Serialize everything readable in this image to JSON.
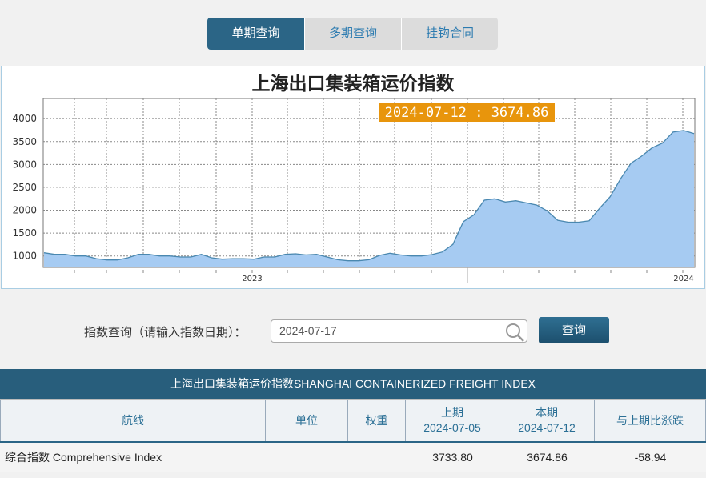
{
  "tabs": [
    {
      "label": "单期查询",
      "active": true
    },
    {
      "label": "多期查询",
      "active": false
    },
    {
      "label": "挂钩合同",
      "active": false
    }
  ],
  "chart_data": {
    "type": "area",
    "title": "上海出口集装箱运价指数",
    "tooltip": "2024-07-12 : 3674.86",
    "yticks": [
      1000,
      1500,
      2000,
      2500,
      3000,
      3500,
      4000
    ],
    "ylim": [
      750,
      4440
    ],
    "xtick_labels": [
      "2023",
      "2024"
    ],
    "grid": true,
    "fill_color": "#a6cbf2",
    "line_color": "#4a88b0",
    "values": [
      1070,
      1035,
      1035,
      1000,
      1000,
      940,
      912,
      912,
      960,
      1035,
      1035,
      1000,
      1000,
      977,
      977,
      1035,
      960,
      930,
      940,
      940,
      930,
      977,
      977,
      1035,
      1047,
      1023,
      1035,
      977,
      918,
      895,
      895,
      918,
      1012,
      1059,
      1023,
      1000,
      1000,
      1029,
      1088,
      1252,
      1750,
      1897,
      2219,
      2248,
      2178,
      2207,
      2160,
      2113,
      1985,
      1780,
      1738,
      1738,
      1768,
      2043,
      2295,
      2688,
      3028,
      3180,
      3362,
      3467,
      3707,
      3742,
      3674.86
    ]
  },
  "query": {
    "label": "指数查询（请输入指数日期）：",
    "value": "2024-07-17",
    "button": "查询"
  },
  "table": {
    "caption": "上海出口集装箱运价指数SHANGHAI CONTAINERIZED FREIGHT INDEX",
    "headers": [
      {
        "l1": "航线"
      },
      {
        "l1": "单位"
      },
      {
        "l1": "权重"
      },
      {
        "l1": "上期",
        "l2": "2024-07-05"
      },
      {
        "l1": "本期",
        "l2": "2024-07-12"
      },
      {
        "l1": "与上期比涨跌"
      }
    ],
    "rows": [
      {
        "route": "综合指数 Comprehensive Index",
        "unit": "",
        "weight": "",
        "prev": "3733.80",
        "curr": "3674.86",
        "change": "-58.94"
      }
    ]
  }
}
